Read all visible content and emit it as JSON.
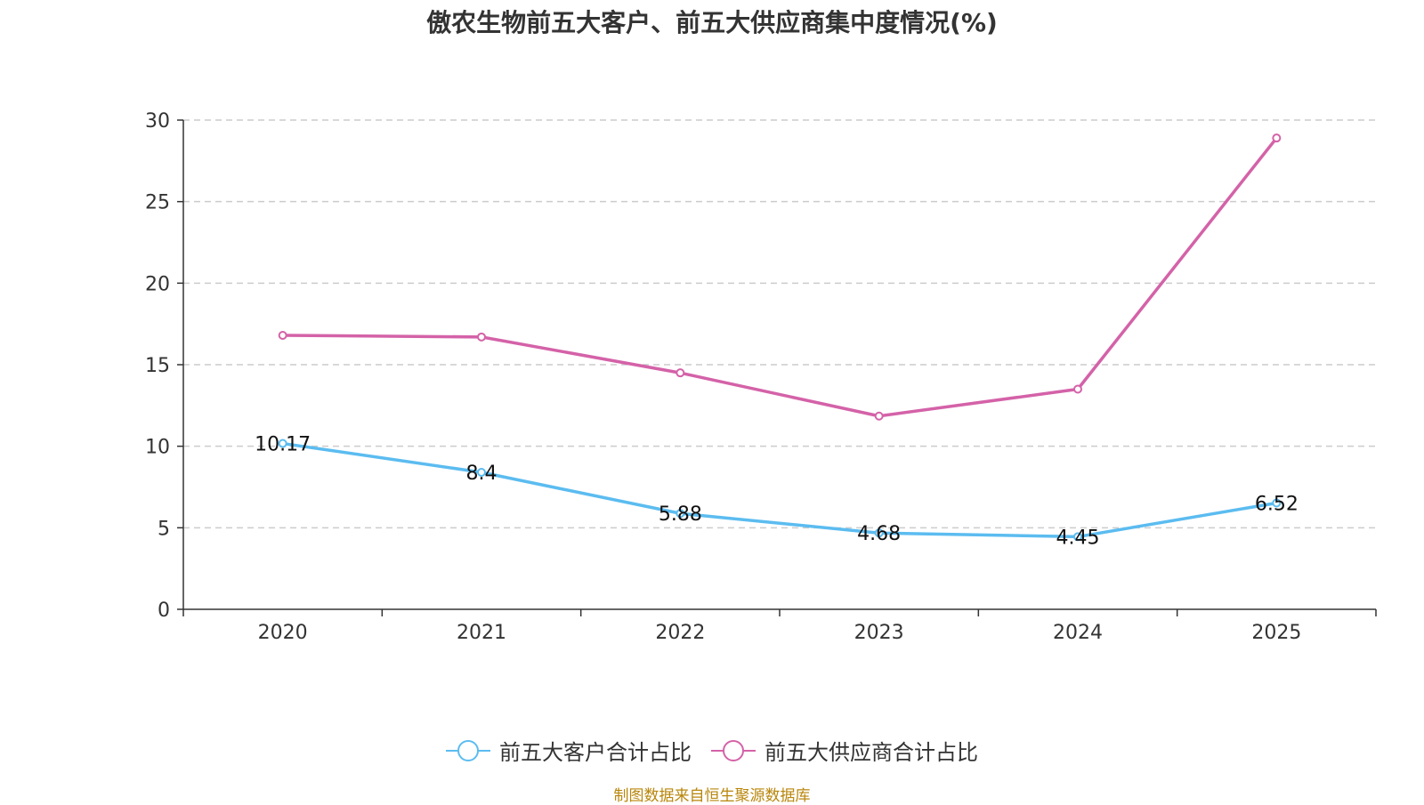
{
  "chart_data": {
    "type": "line",
    "title": "傲农生物前五大客户、前五大供应商集中度情况(%)",
    "categories": [
      "2020",
      "2021",
      "2022",
      "2023",
      "2024",
      "2025"
    ],
    "ylim": [
      0,
      30
    ],
    "yticks": [
      0,
      5,
      10,
      15,
      20,
      25,
      30
    ],
    "grid": true,
    "legend_position": "bottom",
    "series": [
      {
        "name": "前五大客户合计占比",
        "values": [
          10.17,
          8.4,
          5.88,
          4.68,
          4.45,
          6.52
        ],
        "color": "#5bbcf0",
        "labels": [
          "10.17",
          "8.4",
          "5.88",
          "4.68",
          "4.45",
          "6.52"
        ]
      },
      {
        "name": "前五大供应商合计占比",
        "values": [
          16.8,
          16.7,
          14.5,
          11.85,
          13.5,
          28.9
        ],
        "color": "#d462a8"
      }
    ]
  },
  "source": "制图数据来自恒生聚源数据库"
}
